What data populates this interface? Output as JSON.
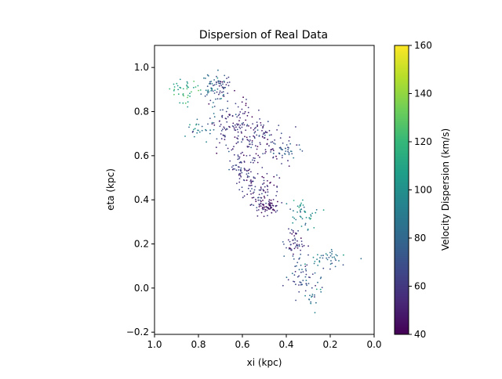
{
  "chart_data": {
    "type": "scatter",
    "title": "Dispersion of Real Data",
    "xlabel": "xi (kpc)",
    "ylabel": "eta (kpc)",
    "xlim": [
      1.0,
      0.0
    ],
    "ylim": [
      -0.21,
      1.1
    ],
    "x_inverted": true,
    "grid": false,
    "xticks": [
      1.0,
      0.8,
      0.6,
      0.4,
      0.2,
      0.0
    ],
    "xtick_labels": [
      "1.0",
      "0.8",
      "0.6",
      "0.4",
      "0.2",
      "0.0"
    ],
    "yticks": [
      -0.2,
      0.0,
      0.2,
      0.4,
      0.6,
      0.8,
      1.0
    ],
    "ytick_labels": [
      "−0.2",
      "0.0",
      "0.2",
      "0.4",
      "0.6",
      "0.8",
      "1.0"
    ],
    "colorbar": {
      "label": "Velocity Dispersion (km/s)",
      "min": 40,
      "max": 160,
      "ticks": [
        40,
        60,
        80,
        100,
        120,
        140,
        160
      ],
      "tick_labels": [
        "40",
        "60",
        "80",
        "100",
        "120",
        "140",
        "160"
      ],
      "colormap": "viridis"
    },
    "clusters": [
      {
        "x": 0.86,
        "y": 0.9,
        "sx": 0.035,
        "sy": 0.03,
        "n": 40,
        "v": 115
      },
      {
        "x": 0.73,
        "y": 0.9,
        "sx": 0.03,
        "sy": 0.035,
        "n": 50,
        "v": 82
      },
      {
        "x": 0.69,
        "y": 0.92,
        "sx": 0.025,
        "sy": 0.03,
        "n": 30,
        "v": 62
      },
      {
        "x": 0.8,
        "y": 0.72,
        "sx": 0.035,
        "sy": 0.025,
        "n": 25,
        "v": 88
      },
      {
        "x": 0.63,
        "y": 0.73,
        "sx": 0.06,
        "sy": 0.06,
        "n": 140,
        "v": 58
      },
      {
        "x": 0.5,
        "y": 0.68,
        "sx": 0.05,
        "sy": 0.05,
        "n": 80,
        "v": 56
      },
      {
        "x": 0.4,
        "y": 0.62,
        "sx": 0.035,
        "sy": 0.025,
        "n": 40,
        "v": 70
      },
      {
        "x": 0.6,
        "y": 0.54,
        "sx": 0.035,
        "sy": 0.035,
        "n": 60,
        "v": 62
      },
      {
        "x": 0.52,
        "y": 0.44,
        "sx": 0.04,
        "sy": 0.045,
        "n": 90,
        "v": 55
      },
      {
        "x": 0.48,
        "y": 0.37,
        "sx": 0.025,
        "sy": 0.02,
        "n": 60,
        "v": 48
      },
      {
        "x": 0.32,
        "y": 0.34,
        "sx": 0.03,
        "sy": 0.035,
        "n": 45,
        "v": 95
      },
      {
        "x": 0.37,
        "y": 0.2,
        "sx": 0.025,
        "sy": 0.04,
        "n": 55,
        "v": 60
      },
      {
        "x": 0.21,
        "y": 0.13,
        "sx": 0.04,
        "sy": 0.02,
        "n": 40,
        "v": 88
      },
      {
        "x": 0.32,
        "y": 0.04,
        "sx": 0.035,
        "sy": 0.04,
        "n": 50,
        "v": 70
      },
      {
        "x": 0.27,
        "y": -0.04,
        "sx": 0.025,
        "sy": 0.03,
        "n": 15,
        "v": 85
      }
    ]
  }
}
